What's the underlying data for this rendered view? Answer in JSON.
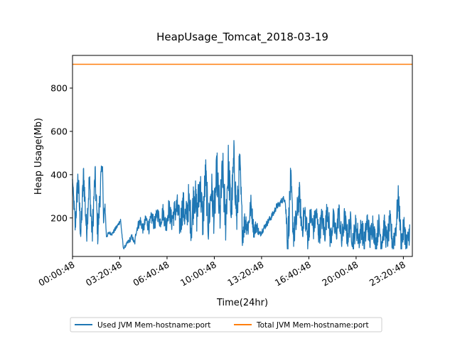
{
  "chart_data": {
    "type": "line",
    "title": "HeapUsage_Tomcat_2018-03-19",
    "xlabel": "Time(24hr)",
    "ylabel": "Heap Usage(Mb)",
    "x_unit": "hours of day (24hr clock)",
    "xlim": [
      0.8133,
      24.78
    ],
    "ylim": [
      22,
      951
    ],
    "x_ticks": [
      {
        "value": 0.8133,
        "label": "00:00:48"
      },
      {
        "value": 4.1467,
        "label": "03:20:48"
      },
      {
        "value": 7.48,
        "label": "06:40:48"
      },
      {
        "value": 10.8133,
        "label": "10:00:48"
      },
      {
        "value": 14.1467,
        "label": "13:20:48"
      },
      {
        "value": 17.48,
        "label": "16:40:48"
      },
      {
        "value": 20.8133,
        "label": "20:00:48"
      },
      {
        "value": 24.1467,
        "label": "23:20:48"
      }
    ],
    "y_ticks": [
      200,
      400,
      600,
      800
    ],
    "grid": false,
    "legend_position": "below plot",
    "series": [
      {
        "name": "Used JVM Mem-hostname:port",
        "color": "#1f77b4",
        "x": [
          0.81,
          1.0,
          1.2,
          1.4,
          1.6,
          1.8,
          2.0,
          2.2,
          2.4,
          2.6,
          2.8,
          2.93,
          3.0,
          3.1,
          3.2,
          3.4,
          3.6,
          3.8,
          4.0,
          4.2,
          4.4,
          4.6,
          4.8,
          5.0,
          5.2,
          5.3,
          5.4,
          5.6,
          5.8,
          6.0,
          6.2,
          6.4,
          6.6,
          6.8,
          7.0,
          7.2,
          7.4,
          7.6,
          7.8,
          8.0,
          8.2,
          8.4,
          8.6,
          8.8,
          9.0,
          9.2,
          9.4,
          9.6,
          9.8,
          10.0,
          10.2,
          10.4,
          10.6,
          10.8,
          11.0,
          11.2,
          11.4,
          11.6,
          11.8,
          12.0,
          12.2,
          12.4,
          12.6,
          12.8,
          13.0,
          13.2,
          13.4,
          13.6,
          13.8,
          14.0,
          14.2,
          14.4,
          14.6,
          14.8,
          15.0,
          15.2,
          15.4,
          15.6,
          15.8,
          16.0,
          16.2,
          16.4,
          16.6,
          16.8,
          17.0,
          17.2,
          17.4,
          17.6,
          17.8,
          18.0,
          18.2,
          18.4,
          18.6,
          18.8,
          19.0,
          19.2,
          19.4,
          19.6,
          19.8,
          20.0,
          20.2,
          20.4,
          20.6,
          20.8,
          21.0,
          21.2,
          21.4,
          21.6,
          21.8,
          22.0,
          22.2,
          22.4,
          22.6,
          22.8,
          23.0,
          23.2,
          23.4,
          23.6,
          23.8,
          24.0,
          24.2,
          24.4,
          24.6,
          24.78
        ],
        "y": [
          380,
          200,
          420,
          160,
          440,
          170,
          410,
          150,
          430,
          160,
          400,
          450,
          180,
          280,
          120,
          135,
          130,
          150,
          170,
          195,
          60,
          80,
          100,
          120,
          85,
          150,
          170,
          200,
          160,
          210,
          170,
          220,
          190,
          240,
          200,
          250,
          180,
          270,
          210,
          260,
          280,
          200,
          300,
          230,
          320,
          210,
          380,
          260,
          420,
          230,
          450,
          210,
          390,
          260,
          470,
          250,
          480,
          230,
          500,
          270,
          520,
          240,
          500,
          170,
          220,
          180,
          290,
          160,
          180,
          130,
          150,
          170,
          190,
          210,
          230,
          260,
          270,
          290,
          300,
          140,
          410,
          160,
          220,
          350,
          180,
          260,
          140,
          240,
          180,
          250,
          150,
          230,
          160,
          280,
          130,
          220,
          150,
          260,
          120,
          230,
          140,
          210,
          120,
          200,
          130,
          190,
          110,
          220,
          130,
          210,
          100,
          200,
          120,
          190,
          120,
          210,
          110,
          180,
          330,
          110,
          190,
          95,
          180,
          120
        ],
        "jitter_width": [
          0,
          140,
          150,
          150,
          150,
          140,
          140,
          140,
          140,
          140,
          140,
          0,
          60,
          50,
          20,
          15,
          15,
          20,
          20,
          20,
          10,
          15,
          25,
          25,
          20,
          40,
          40,
          50,
          50,
          60,
          60,
          70,
          70,
          70,
          70,
          80,
          80,
          100,
          100,
          120,
          140,
          140,
          160,
          160,
          180,
          180,
          200,
          200,
          200,
          200,
          200,
          200,
          200,
          200,
          220,
          220,
          220,
          220,
          220,
          200,
          200,
          200,
          200,
          140,
          120,
          100,
          100,
          80,
          60,
          30,
          30,
          30,
          30,
          30,
          30,
          30,
          30,
          30,
          30,
          200,
          160,
          140,
          160,
          140,
          120,
          140,
          120,
          120,
          120,
          120,
          120,
          120,
          120,
          120,
          120,
          120,
          120,
          120,
          120,
          120,
          120,
          120,
          120,
          120,
          120,
          120,
          120,
          120,
          120,
          120,
          120,
          120,
          120,
          120,
          120,
          120,
          120,
          140,
          120,
          120,
          120,
          120,
          120
        ]
      },
      {
        "name": "Total JVM Mem-hostname:port",
        "color": "#ff7f0e",
        "x": [
          0.81,
          24.78
        ],
        "y": [
          910,
          910
        ]
      }
    ]
  }
}
